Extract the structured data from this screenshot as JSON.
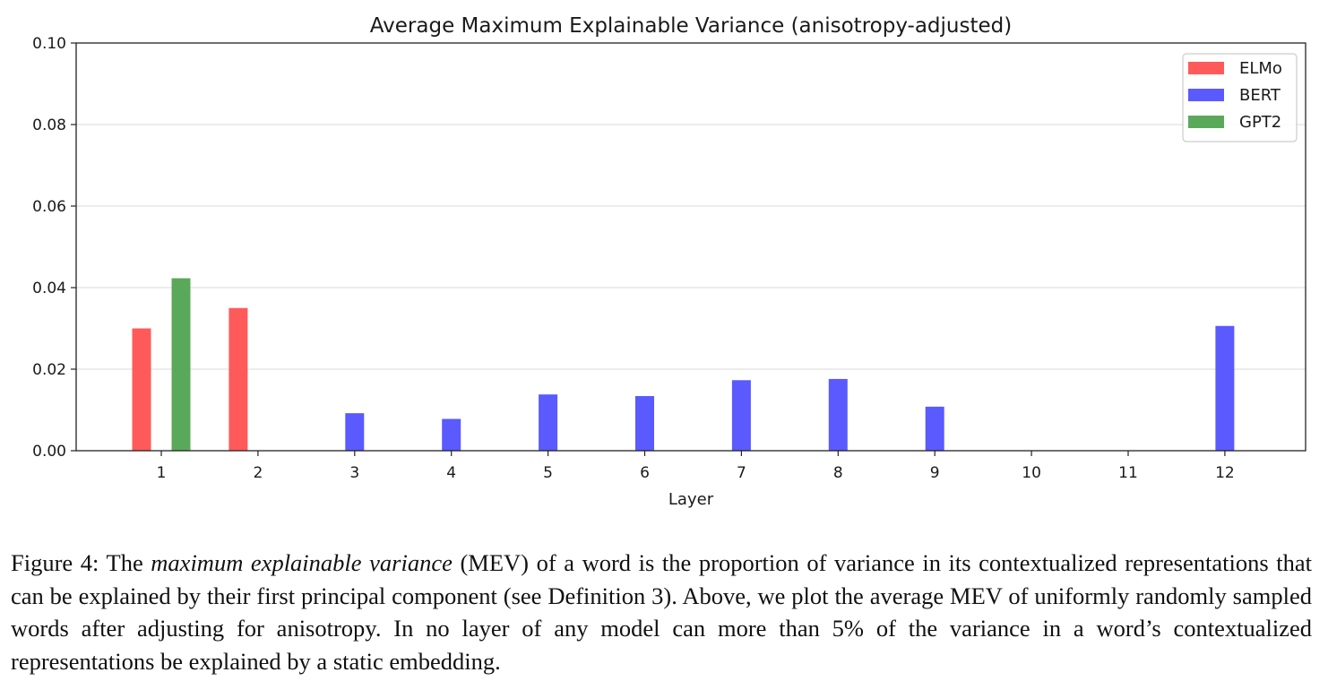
{
  "chart_data": {
    "type": "bar",
    "title": "Average Maximum Explainable Variance (anisotropy-adjusted)",
    "xlabel": "Layer",
    "ylabel": "",
    "categories": [
      "1",
      "2",
      "3",
      "4",
      "5",
      "6",
      "7",
      "8",
      "9",
      "10",
      "11",
      "12"
    ],
    "ylim": [
      0,
      0.1
    ],
    "yticks": [
      "0.00",
      "0.02",
      "0.04",
      "0.06",
      "0.08",
      "0.10"
    ],
    "grid": "horizontal",
    "legend_position": "top-right",
    "series": [
      {
        "name": "ELMo",
        "color": "#ff5a5a",
        "values": [
          0.03,
          0.035,
          null,
          null,
          null,
          null,
          null,
          null,
          null,
          null,
          null,
          null
        ]
      },
      {
        "name": "BERT",
        "color": "#5a5aff",
        "values": [
          null,
          null,
          0.0092,
          0.0078,
          0.0138,
          0.0134,
          0.0173,
          0.0176,
          0.0108,
          null,
          null,
          0.0306
        ]
      },
      {
        "name": "GPT2",
        "color": "#5aa95a",
        "values": [
          0.0423,
          null,
          null,
          null,
          null,
          null,
          null,
          null,
          null,
          null,
          null,
          null
        ]
      }
    ]
  },
  "caption": {
    "prefix": "Figure 4: The ",
    "emphasis": "maximum explainable variance",
    "body": " (MEV) of a word is the proportion of variance in its contextualized representations that can be explained by their first principal component (see Definition 3).  Above, we plot the average MEV of uniformly randomly sampled words after adjusting for anisotropy. In no layer of any model can more than 5% of the variance in a word’s contextualized representations be explained by a static embedding."
  }
}
